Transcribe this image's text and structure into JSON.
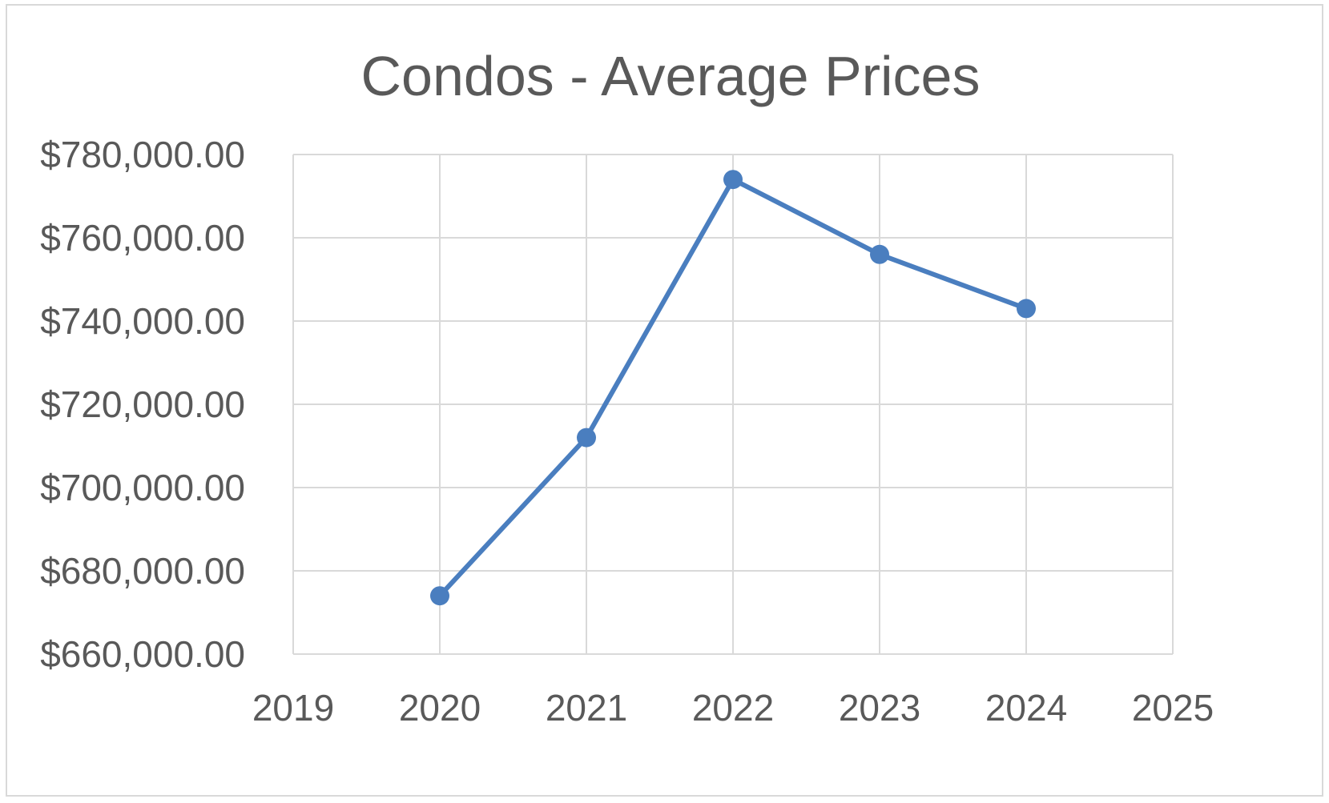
{
  "chart_data": {
    "type": "line",
    "title": "Condos - Average Prices",
    "xlabel": "",
    "ylabel": "",
    "x_ticks": [
      "2019",
      "2020",
      "2021",
      "2022",
      "2023",
      "2024",
      "2025"
    ],
    "y_ticks": [
      "$780,000.00",
      "$760,000.00",
      "$740,000.00",
      "$720,000.00",
      "$700,000.00",
      "$680,000.00",
      "$660,000.00"
    ],
    "xlim": [
      2019,
      2025
    ],
    "ylim": [
      660000,
      780000
    ],
    "grid": true,
    "legend": "none",
    "series": [
      {
        "x": [
          2020,
          2021,
          2022,
          2023,
          2024
        ],
        "values": [
          674000,
          712000,
          774000,
          756000,
          743000
        ]
      }
    ],
    "colors": {
      "line": "#4a7ebf",
      "grid": "#d9d9d9",
      "text": "#595959"
    }
  }
}
